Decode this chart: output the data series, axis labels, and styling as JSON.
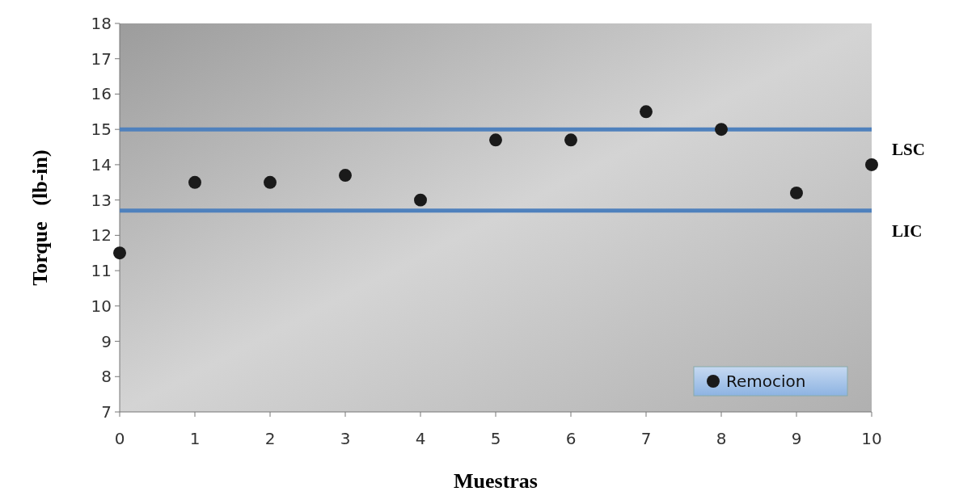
{
  "chart_data": {
    "type": "scatter",
    "xlabel": "Muestras",
    "ylabel": "Torque   (lb-in)",
    "x": [
      0,
      1,
      2,
      3,
      4,
      5,
      6,
      7,
      8,
      9,
      10
    ],
    "series": [
      {
        "name": "Remocion",
        "color": "#1a1a1a",
        "values": [
          11.5,
          13.5,
          13.5,
          13.7,
          13.0,
          14.7,
          14.7,
          15.5,
          15.0,
          13.2,
          14.0
        ]
      }
    ],
    "xlim": [
      0,
      10
    ],
    "xticks": [
      0,
      1,
      2,
      3,
      4,
      5,
      6,
      7,
      8,
      9,
      10
    ],
    "ylim": [
      7,
      18
    ],
    "yticks": [
      7,
      8,
      9,
      10,
      11,
      12,
      13,
      14,
      15,
      16,
      17,
      18
    ],
    "ref_lines": [
      {
        "axis": "y",
        "value": 15,
        "label": "LSC",
        "color": "#4f81bd"
      },
      {
        "axis": "y",
        "value": 12.7,
        "label": "LIC",
        "color": "#4f81bd"
      }
    ],
    "marker": "circle",
    "grid": false,
    "legend": "bottom right"
  }
}
